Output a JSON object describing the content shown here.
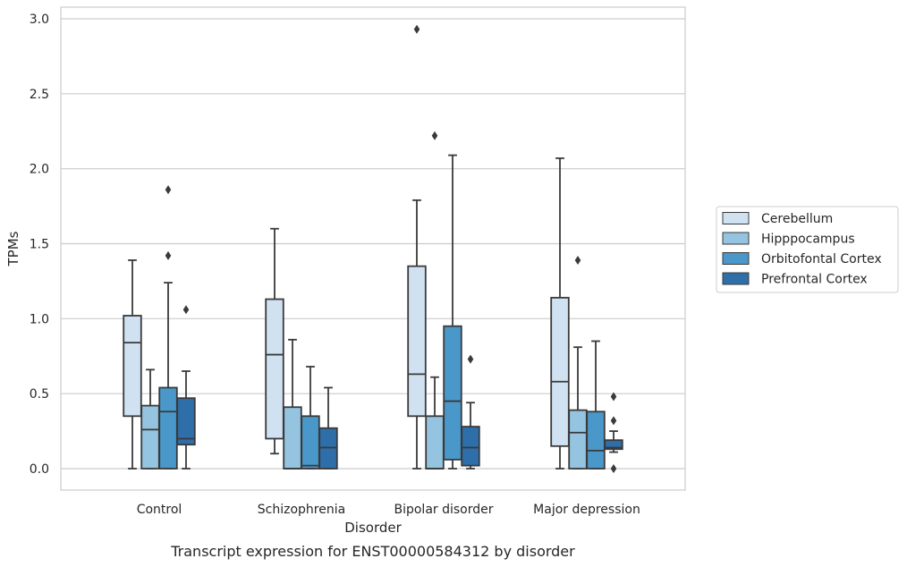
{
  "chart_data": {
    "type": "boxplot",
    "xlabel": "Disorder",
    "ylabel": "TPMs",
    "caption": "Transcript expression for ENST00000584312 by disorder",
    "categories": [
      "Control",
      "Schizophrenia",
      "Bipolar disorder",
      "Major depression"
    ],
    "ylim": [
      -0.14,
      3.08
    ],
    "yticks": [
      "0.0",
      "0.5",
      "1.0",
      "1.5",
      "2.0",
      "2.5",
      "3.0"
    ],
    "grid": true,
    "legend_position": "right",
    "series": [
      {
        "name": "Cerebellum",
        "color": "#d0e1f2",
        "boxes": [
          {
            "whislo": 0.0,
            "q1": 0.35,
            "med": 0.84,
            "q3": 1.02,
            "whishi": 1.39,
            "fliers": []
          },
          {
            "whislo": 0.1,
            "q1": 0.2,
            "med": 0.76,
            "q3": 1.13,
            "whishi": 1.6,
            "fliers": []
          },
          {
            "whislo": 0.0,
            "q1": 0.35,
            "med": 0.63,
            "q3": 1.35,
            "whishi": 1.79,
            "fliers": [
              2.93
            ]
          },
          {
            "whislo": 0.0,
            "q1": 0.15,
            "med": 0.58,
            "q3": 1.14,
            "whishi": 2.07,
            "fliers": []
          }
        ]
      },
      {
        "name": "Hipppocampus",
        "color": "#94c4df",
        "boxes": [
          {
            "whislo": 0.0,
            "q1": 0.0,
            "med": 0.26,
            "q3": 0.42,
            "whishi": 0.66,
            "fliers": []
          },
          {
            "whislo": 0.0,
            "q1": 0.0,
            "med": 0.0,
            "q3": 0.41,
            "whishi": 0.86,
            "fliers": []
          },
          {
            "whislo": 0.0,
            "q1": 0.0,
            "med": 0.0,
            "q3": 0.35,
            "whishi": 0.61,
            "fliers": [
              2.22
            ]
          },
          {
            "whislo": 0.0,
            "q1": 0.0,
            "med": 0.24,
            "q3": 0.39,
            "whishi": 0.81,
            "fliers": [
              1.39
            ]
          }
        ]
      },
      {
        "name": "Orbitofontal Cortex",
        "color": "#4a98c9",
        "boxes": [
          {
            "whislo": 0.0,
            "q1": 0.0,
            "med": 0.38,
            "q3": 0.54,
            "whishi": 1.24,
            "fliers": [
              1.42,
              1.86
            ]
          },
          {
            "whislo": 0.0,
            "q1": 0.0,
            "med": 0.02,
            "q3": 0.35,
            "whishi": 0.68,
            "fliers": []
          },
          {
            "whislo": 0.0,
            "q1": 0.06,
            "med": 0.45,
            "q3": 0.95,
            "whishi": 2.09,
            "fliers": []
          },
          {
            "whislo": 0.0,
            "q1": 0.0,
            "med": 0.12,
            "q3": 0.38,
            "whishi": 0.85,
            "fliers": []
          }
        ]
      },
      {
        "name": "Prefrontal Cortex",
        "color": "#2e6ea9",
        "boxes": [
          {
            "whislo": 0.0,
            "q1": 0.16,
            "med": 0.2,
            "q3": 0.47,
            "whishi": 0.65,
            "fliers": [
              1.06
            ]
          },
          {
            "whislo": 0.0,
            "q1": 0.0,
            "med": 0.14,
            "q3": 0.27,
            "whishi": 0.54,
            "fliers": []
          },
          {
            "whislo": 0.0,
            "q1": 0.02,
            "med": 0.14,
            "q3": 0.28,
            "whishi": 0.44,
            "fliers": [
              0.73
            ]
          },
          {
            "whislo": 0.11,
            "q1": 0.13,
            "med": 0.14,
            "q3": 0.19,
            "whishi": 0.25,
            "fliers": [
              0.0,
              0.32,
              0.48
            ]
          }
        ]
      }
    ]
  }
}
